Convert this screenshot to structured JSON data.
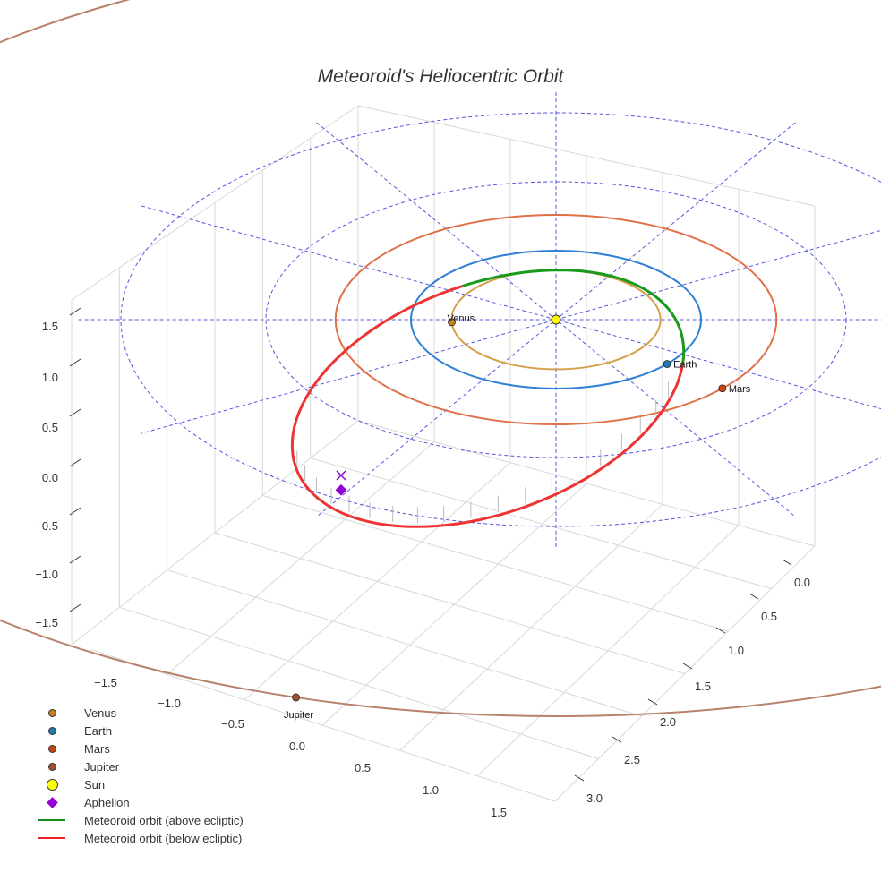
{
  "chart_data": {
    "type": "scatter3d",
    "title": "Meteoroid's Heliocentric Orbit",
    "axes": {
      "x": {
        "ticks": [
          "−1.5",
          "−1.0",
          "−0.5",
          "0.0",
          "0.5",
          "1.0",
          "1.5"
        ],
        "range": [
          -1.8,
          1.8
        ]
      },
      "y": {
        "ticks": [
          "0.0",
          "0.5",
          "1.0",
          "1.5",
          "2.0",
          "2.5",
          "3.0"
        ],
        "range": [
          -0.2,
          3.2
        ]
      },
      "z": {
        "ticks": [
          "1.5",
          "1.0",
          "0.5",
          "0.0",
          "−0.5",
          "−1.0",
          "−1.5"
        ],
        "range": [
          -1.7,
          1.7
        ]
      }
    },
    "reference_circles_au": [
      2,
      3
    ],
    "radial_lines_deg": [
      0,
      30,
      60,
      90,
      120,
      150
    ],
    "planets": [
      {
        "name": "Venus",
        "orbit_au": 0.72,
        "angle_deg": 183,
        "color": "#d4a04a",
        "marker": "#c8811a"
      },
      {
        "name": "Earth",
        "orbit_au": 1.0,
        "angle_deg": -40,
        "color": "#2f7fd6",
        "marker": "#1f77b4"
      },
      {
        "name": "Mars",
        "orbit_au": 1.52,
        "angle_deg": -41,
        "color": "#e07048",
        "marker": "#cc4411"
      },
      {
        "name": "Jupiter",
        "orbit_au": 5.2,
        "angle_deg": 252,
        "color": "#b8826a",
        "marker": "#a0522d"
      }
    ],
    "sun": {
      "name": "Sun",
      "color": "#ffff00"
    },
    "meteoroid": {
      "perihelion_au": 1.0,
      "aphelion_au": 2.2,
      "above_color": "#1a9a1a",
      "below_color": "#ee3333"
    },
    "legend": [
      {
        "label": "Venus",
        "kind": "dot",
        "color": "#c8811a"
      },
      {
        "label": "Earth",
        "kind": "dot",
        "color": "#1f77b4"
      },
      {
        "label": "Mars",
        "kind": "dot",
        "color": "#cc4411"
      },
      {
        "label": "Jupiter",
        "kind": "dot",
        "color": "#a0522d"
      },
      {
        "label": "Sun",
        "kind": "sun",
        "color": "#ffff00"
      },
      {
        "label": "Aphelion",
        "kind": "diamond",
        "color": "#9400d3"
      },
      {
        "label": "Meteoroid orbit (above ecliptic)",
        "kind": "line",
        "color": "#1a8a1a"
      },
      {
        "label": "Meteoroid orbit (below ecliptic)",
        "kind": "line",
        "color": "#ee2222"
      }
    ],
    "legend_position": "bottom-left"
  }
}
